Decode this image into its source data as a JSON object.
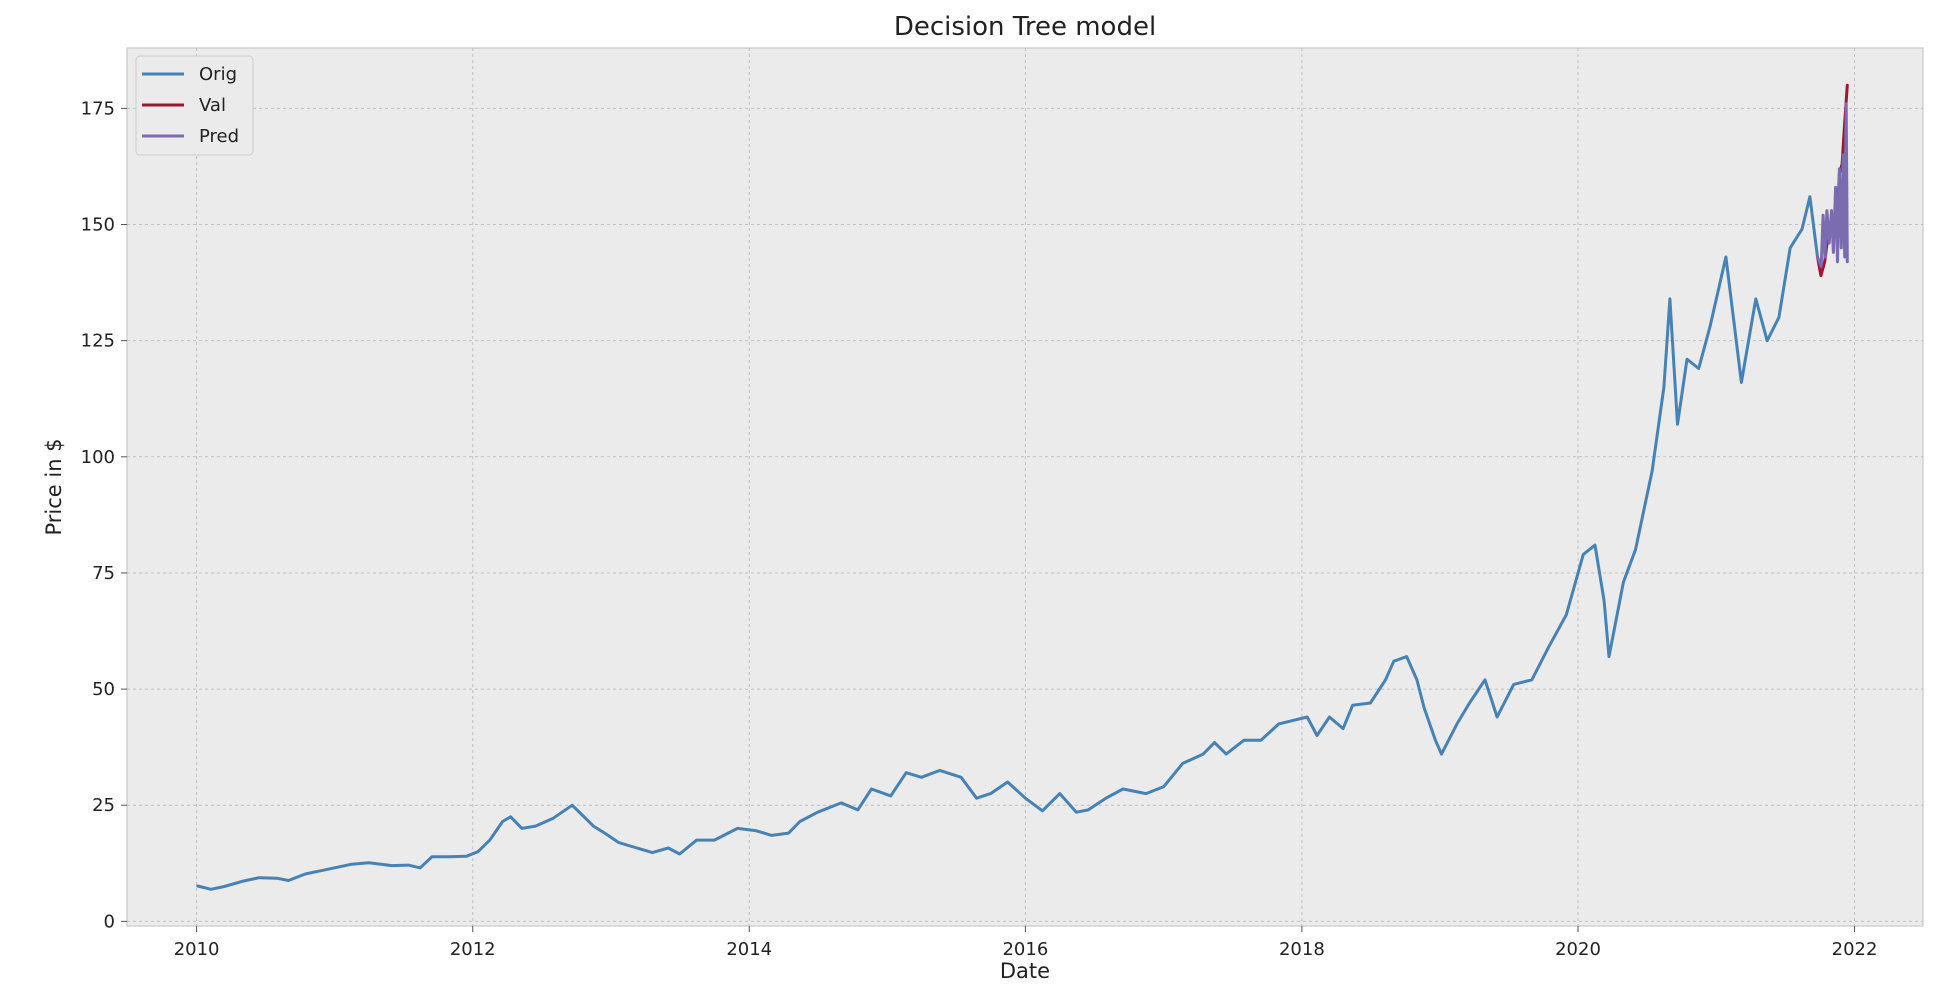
{
  "chart_data": {
    "type": "line",
    "title": "Decision Tree model",
    "xlabel": "Date",
    "ylabel": "Price in $",
    "x_axis_type": "date",
    "xlim": [
      "2009-07-01",
      "2022-07-01"
    ],
    "ylim": [
      -1,
      188
    ],
    "x_ticks": [
      "2010",
      "2012",
      "2014",
      "2016",
      "2018",
      "2020",
      "2022"
    ],
    "x_tick_dates": [
      "2010-01-01",
      "2012-01-01",
      "2014-01-01",
      "2016-01-01",
      "2018-01-01",
      "2020-01-01",
      "2022-01-01"
    ],
    "y_ticks": [
      0,
      25,
      50,
      75,
      100,
      125,
      150,
      175
    ],
    "grid": true,
    "grid_style": "dashed",
    "background_color": "#ebebeb",
    "legend_position": "top-left",
    "series": [
      {
        "name": "Orig",
        "color": "#4682b4",
        "points": [
          [
            "2010-01-04",
            7.6
          ],
          [
            "2010-02-08",
            6.9
          ],
          [
            "2010-03-15",
            7.5
          ],
          [
            "2010-05-01",
            8.6
          ],
          [
            "2010-06-15",
            9.4
          ],
          [
            "2010-08-01",
            9.3
          ],
          [
            "2010-09-01",
            8.8
          ],
          [
            "2010-10-15",
            10.2
          ],
          [
            "2010-12-01",
            11.0
          ],
          [
            "2011-02-15",
            12.3
          ],
          [
            "2011-04-01",
            12.6
          ],
          [
            "2011-06-01",
            12.0
          ],
          [
            "2011-07-15",
            12.1
          ],
          [
            "2011-08-15",
            11.5
          ],
          [
            "2011-09-15",
            13.9
          ],
          [
            "2011-11-01",
            13.9
          ],
          [
            "2011-12-15",
            14.0
          ],
          [
            "2012-01-15",
            15.0
          ],
          [
            "2012-02-15",
            17.5
          ],
          [
            "2012-03-20",
            21.5
          ],
          [
            "2012-04-10",
            22.5
          ],
          [
            "2012-05-10",
            20.0
          ],
          [
            "2012-06-15",
            20.5
          ],
          [
            "2012-08-01",
            22.2
          ],
          [
            "2012-09-20",
            25.0
          ],
          [
            "2012-10-15",
            23.0
          ],
          [
            "2012-11-15",
            20.5
          ],
          [
            "2012-12-15",
            19.0
          ],
          [
            "2013-01-20",
            17.0
          ],
          [
            "2013-03-01",
            16.0
          ],
          [
            "2013-04-20",
            14.8
          ],
          [
            "2013-06-01",
            15.8
          ],
          [
            "2013-07-01",
            14.5
          ],
          [
            "2013-08-15",
            17.5
          ],
          [
            "2013-10-01",
            17.5
          ],
          [
            "2013-12-01",
            20.0
          ],
          [
            "2014-01-20",
            19.5
          ],
          [
            "2014-03-01",
            18.5
          ],
          [
            "2014-04-15",
            19.0
          ],
          [
            "2014-05-15",
            21.5
          ],
          [
            "2014-07-01",
            23.5
          ],
          [
            "2014-09-01",
            25.5
          ],
          [
            "2014-10-15",
            24.0
          ],
          [
            "2014-11-20",
            28.5
          ],
          [
            "2015-01-10",
            27.0
          ],
          [
            "2015-02-20",
            32.0
          ],
          [
            "2015-04-01",
            31.0
          ],
          [
            "2015-05-20",
            32.5
          ],
          [
            "2015-07-15",
            31.0
          ],
          [
            "2015-08-25",
            26.5
          ],
          [
            "2015-10-01",
            27.5
          ],
          [
            "2015-11-15",
            30.0
          ],
          [
            "2016-01-01",
            26.5
          ],
          [
            "2016-02-15",
            23.8
          ],
          [
            "2016-04-01",
            27.5
          ],
          [
            "2016-05-15",
            23.5
          ],
          [
            "2016-06-15",
            24.0
          ],
          [
            "2016-08-01",
            26.5
          ],
          [
            "2016-09-15",
            28.5
          ],
          [
            "2016-11-15",
            27.5
          ],
          [
            "2017-01-01",
            29.0
          ],
          [
            "2017-02-20",
            34.0
          ],
          [
            "2017-04-15",
            36.0
          ],
          [
            "2017-05-15",
            38.5
          ],
          [
            "2017-06-15",
            36.0
          ],
          [
            "2017-08-01",
            39.0
          ],
          [
            "2017-09-15",
            39.0
          ],
          [
            "2017-11-01",
            42.5
          ],
          [
            "2018-01-15",
            44.0
          ],
          [
            "2018-02-10",
            40.0
          ],
          [
            "2018-03-15",
            44.0
          ],
          [
            "2018-04-20",
            41.5
          ],
          [
            "2018-05-15",
            46.5
          ],
          [
            "2018-07-01",
            47.0
          ],
          [
            "2018-08-10",
            52.0
          ],
          [
            "2018-09-01",
            56.0
          ],
          [
            "2018-10-05",
            57.0
          ],
          [
            "2018-11-01",
            52.0
          ],
          [
            "2018-11-20",
            46.0
          ],
          [
            "2018-12-20",
            39.0
          ],
          [
            "2019-01-05",
            36.0
          ],
          [
            "2019-02-15",
            42.5
          ],
          [
            "2019-03-20",
            47.0
          ],
          [
            "2019-04-30",
            52.0
          ],
          [
            "2019-06-01",
            44.0
          ],
          [
            "2019-07-15",
            51.0
          ],
          [
            "2019-09-01",
            52.0
          ],
          [
            "2019-10-15",
            59.0
          ],
          [
            "2019-12-01",
            66.0
          ],
          [
            "2020-01-15",
            79.0
          ],
          [
            "2020-02-15",
            81.0
          ],
          [
            "2020-03-10",
            69.0
          ],
          [
            "2020-03-23",
            57.0
          ],
          [
            "2020-04-30",
            73.0
          ],
          [
            "2020-06-01",
            80.0
          ],
          [
            "2020-07-15",
            97.0
          ],
          [
            "2020-08-15",
            115.0
          ],
          [
            "2020-08-31",
            134.0
          ],
          [
            "2020-09-20",
            107.0
          ],
          [
            "2020-10-15",
            121.0
          ],
          [
            "2020-11-15",
            119.0
          ],
          [
            "2020-12-15",
            128.0
          ],
          [
            "2021-01-26",
            143.0
          ],
          [
            "2021-03-08",
            116.0
          ],
          [
            "2021-04-15",
            134.0
          ],
          [
            "2021-05-15",
            125.0
          ],
          [
            "2021-06-15",
            130.0
          ],
          [
            "2021-07-15",
            145.0
          ],
          [
            "2021-08-15",
            149.0
          ],
          [
            "2021-09-05",
            156.0
          ],
          [
            "2021-09-25",
            143.0
          ]
        ]
      },
      {
        "name": "Val",
        "color": "#a2142f",
        "points": [
          [
            "2021-09-25",
            143.0
          ],
          [
            "2021-10-04",
            139.0
          ],
          [
            "2021-10-14",
            142.0
          ],
          [
            "2021-10-25",
            149.0
          ],
          [
            "2021-11-05",
            151.0
          ],
          [
            "2021-11-15",
            150.0
          ],
          [
            "2021-11-22",
            161.0
          ],
          [
            "2021-11-29",
            163.0
          ],
          [
            "2021-12-06",
            172.0
          ],
          [
            "2021-12-13",
            180.0
          ]
        ]
      },
      {
        "name": "Pred",
        "color": "#7b6cb0",
        "points": [
          [
            "2021-09-25",
            143.0
          ],
          [
            "2021-10-05",
            141.0
          ],
          [
            "2021-10-10",
            152.0
          ],
          [
            "2021-10-15",
            143.0
          ],
          [
            "2021-10-20",
            153.0
          ],
          [
            "2021-10-26",
            146.0
          ],
          [
            "2021-11-01",
            153.0
          ],
          [
            "2021-11-06",
            144.0
          ],
          [
            "2021-11-12",
            158.0
          ],
          [
            "2021-11-17",
            142.0
          ],
          [
            "2021-11-22",
            162.0
          ],
          [
            "2021-11-27",
            145.0
          ],
          [
            "2021-12-02",
            165.0
          ],
          [
            "2021-12-06",
            143.0
          ],
          [
            "2021-12-10",
            176.0
          ],
          [
            "2021-12-13",
            142.0
          ]
        ]
      }
    ]
  }
}
